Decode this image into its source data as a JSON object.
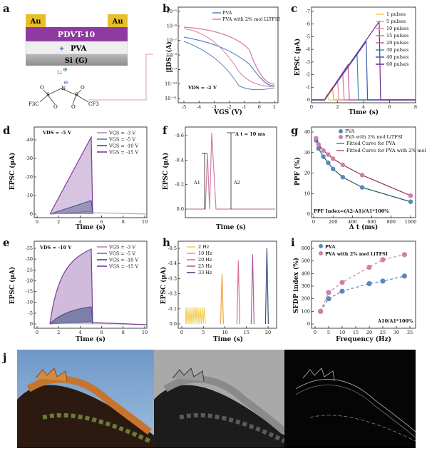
{
  "panels": {
    "a": {
      "label": "a",
      "electrode_left": "Au",
      "electrode_right": "Au",
      "semiconductor": "PDVT-10",
      "dielectric": "PVA",
      "gate": "Si (G)",
      "ion": "Li",
      "ion_charge": "⊕",
      "anion_charge": "⊖",
      "atom_n": "N",
      "atom_s": "S",
      "atom_o": "O",
      "group_left": "F3C",
      "group_right": "CF3"
    },
    "b": {
      "label": "b",
      "ylabel": "|IDS| (A)",
      "xlabel": "VGS (V)",
      "note": "VDS = -2 V",
      "legend": [
        "PVA",
        "PVA with 2% mol LiTFSI"
      ],
      "yticks": [
        "10⁻⁵",
        "10⁻⁶",
        "10⁻⁷",
        "10⁻⁸",
        "10⁻⁹",
        "10⁻¹⁰",
        "10⁻¹¹"
      ],
      "xticks": [
        "-5",
        "-4",
        "-3",
        "-2",
        "-1",
        "0",
        "1"
      ]
    },
    "c": {
      "label": "c",
      "ylabel": "EPSC (μA)",
      "xlabel": "Time (s)",
      "legend": [
        "1 pulses",
        "5 pulses",
        "10 pulses",
        "15 pulses",
        "20 pulses",
        "30 pulses",
        "40 pulses",
        "60 pulses"
      ],
      "yticks": [
        "-7",
        "-6",
        "-5",
        "-4",
        "-3",
        "-2",
        "-1",
        "0"
      ],
      "xticks": [
        "0",
        "2",
        "4",
        "6",
        "8"
      ]
    },
    "d": {
      "label": "d",
      "ylabel": "EPSC (μA)",
      "xlabel": "Time (s)",
      "note": "VDS = -5 V",
      "legend": [
        "VGS = -3 V",
        "VGS = -5 V",
        "VGS = -10 V",
        "VGS = -15 V"
      ],
      "yticks": [
        "0",
        "-10",
        "-20",
        "-30",
        "-40"
      ],
      "xticks": [
        "0",
        "2",
        "4",
        "6",
        "8",
        "10"
      ]
    },
    "e": {
      "label": "e",
      "ylabel": "EPSC (μA)",
      "xlabel": "Time (s)",
      "note": "VDS = -10 V",
      "legend": [
        "VGS = -3 V",
        "VGS = -5 V",
        "VGS = -10 V",
        "VGS = -15 V"
      ],
      "yticks": [
        "0",
        "-5",
        "-10",
        "-15",
        "-20",
        "-25",
        "-30",
        "-35"
      ],
      "xticks": [
        "0",
        "2",
        "4",
        "6",
        "8",
        "10"
      ]
    },
    "f": {
      "label": "f",
      "ylabel": "EPSC (μA)",
      "xlabel": "Time (s)",
      "note": "Δ t = 10 ms",
      "a1": "A1",
      "a2": "A2",
      "yticks": [
        "0.0",
        "-0.2",
        "-0.4",
        "-0.6"
      ]
    },
    "g": {
      "label": "g",
      "ylabel": "PPF (%)",
      "xlabel": "Δ t (ms)",
      "legend": [
        "PVA",
        "PVA with 2% mol LiTFSI",
        "Fitted Curve for PVA",
        "Fitted Curve for PVA with 2% mol LiTFSI"
      ],
      "formula": "PPF Index=(A2-A1)/A1*100%",
      "yticks": [
        "0",
        "10",
        "20",
        "30",
        "40"
      ],
      "xticks": [
        "0",
        "200",
        "400",
        "600",
        "800",
        "1000"
      ]
    },
    "h": {
      "label": "h",
      "ylabel": "EPSC (μA)",
      "xlabel": "Time (s)",
      "legend": [
        "2 Hz",
        "10 Hz",
        "20 Hz",
        "25 Hz",
        "33 Hz"
      ],
      "yticks": [
        "0.0",
        "-0.1",
        "-0.2",
        "-0.3",
        "-0.4",
        "-0.5"
      ],
      "xticks": [
        "0",
        "5",
        "10",
        "15",
        "20"
      ]
    },
    "i": {
      "label": "i",
      "ylabel": "SFDP index (%)",
      "xlabel": "Frequency (Hz)",
      "legend": [
        "PVA",
        "PVA with 2% mol LiTFSI"
      ],
      "formula": "A10/A1*100%",
      "yticks": [
        "0",
        "100",
        "200",
        "300",
        "400",
        "500",
        "600"
      ],
      "xticks": [
        "0",
        "5",
        "10",
        "15",
        "20",
        "25",
        "30",
        "35"
      ]
    },
    "j": {
      "label": "j"
    }
  },
  "colors": {
    "pva": "#5b86bf",
    "litfsi": "#d27fa6",
    "au": "#e7bf2a",
    "pdvt": "#8e3aa0",
    "pva_layer": "#eeeeee",
    "si": "#9a9a9a"
  },
  "chart_data": [
    {
      "panel": "c",
      "type": "line",
      "x_unit": "s",
      "series": [
        {
          "name": "1 pulses",
          "peak": -0.5,
          "end_t": 1.2
        },
        {
          "name": "5 pulses",
          "peak": -1.0,
          "end_t": 1.6
        },
        {
          "name": "10 pulses",
          "peak": -1.5,
          "end_t": 2.0
        },
        {
          "name": "15 pulses",
          "peak": -2.1,
          "end_t": 2.4
        },
        {
          "name": "20 pulses",
          "peak": -2.8,
          "end_t": 2.8
        },
        {
          "name": "30 pulses",
          "peak": -3.7,
          "end_t": 3.5
        },
        {
          "name": "40 pulses",
          "peak": -4.6,
          "end_t": 4.2
        },
        {
          "name": "60 pulses",
          "peak": -6.2,
          "end_t": 5.2
        }
      ],
      "xlim": [
        0,
        8
      ],
      "ylim": [
        0,
        -7
      ]
    },
    {
      "panel": "g",
      "type": "scatter",
      "x": [
        25,
        50,
        100,
        150,
        200,
        300,
        500,
        1000
      ],
      "series": [
        {
          "name": "PVA",
          "values": [
            36,
            32,
            28,
            25,
            22,
            18,
            13,
            6
          ]
        },
        {
          "name": "PVA with 2% mol LiTFSI",
          "values": [
            37,
            34,
            31,
            29,
            27,
            24,
            19,
            9
          ]
        }
      ],
      "xlim": [
        0,
        1000
      ],
      "ylim": [
        0,
        40
      ]
    },
    {
      "panel": "i",
      "type": "scatter",
      "x": [
        2,
        5,
        10,
        20,
        25,
        33
      ],
      "series": [
        {
          "name": "PVA",
          "values": [
            100,
            200,
            260,
            320,
            340,
            380
          ]
        },
        {
          "name": "PVA with 2% mol LiTFSI",
          "values": [
            100,
            250,
            330,
            450,
            510,
            550
          ]
        }
      ],
      "xlim": [
        0,
        35
      ],
      "ylim": [
        0,
        600
      ]
    },
    {
      "panel": "d",
      "type": "line",
      "x_unit": "s",
      "series": [
        {
          "name": "VGS = -3 V",
          "peak": -1
        },
        {
          "name": "VGS = -5 V",
          "peak": -3
        },
        {
          "name": "VGS = -10 V",
          "peak": -7
        },
        {
          "name": "VGS = -15 V",
          "peak": -44
        }
      ],
      "xlim": [
        0,
        10
      ],
      "ylim": [
        0,
        -40
      ]
    },
    {
      "panel": "e",
      "type": "line",
      "x_unit": "s",
      "series": [
        {
          "name": "VGS = -3 V",
          "peak": -1
        },
        {
          "name": "VGS = -5 V",
          "peak": -2
        },
        {
          "name": "VGS = -10 V",
          "peak": -9
        },
        {
          "name": "VGS = -15 V",
          "peak": -36
        }
      ],
      "xlim": [
        0,
        10
      ],
      "ylim": [
        0,
        -35
      ]
    },
    {
      "panel": "h",
      "type": "line",
      "series": [
        {
          "name": "2 Hz",
          "peak": -0.11,
          "start_t": 1.0
        },
        {
          "name": "10 Hz",
          "peak": -0.33,
          "start_t": 9.5
        },
        {
          "name": "20 Hz",
          "peak": -0.42,
          "start_t": 13.5
        },
        {
          "name": "25 Hz",
          "peak": -0.46,
          "start_t": 17
        },
        {
          "name": "33 Hz",
          "peak": -0.5,
          "start_t": 20.5
        }
      ],
      "xlim": [
        0,
        22
      ],
      "ylim": [
        0,
        -0.5
      ]
    }
  ]
}
